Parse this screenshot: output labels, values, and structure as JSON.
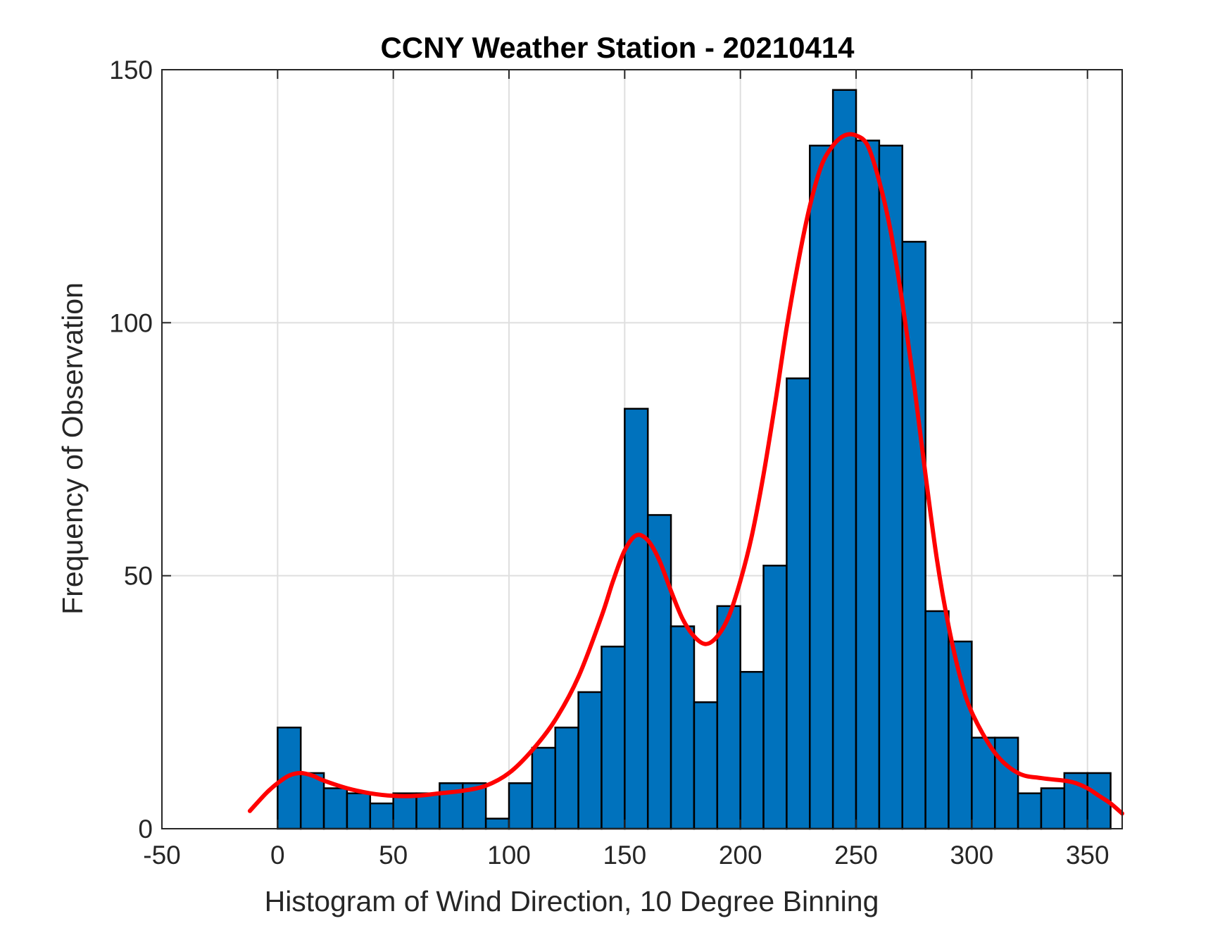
{
  "chart_data": {
    "type": "bar",
    "title": "CCNY Weather Station - 20210414",
    "xlabel": "Histogram of Wind Direction, 10 Degree Binning",
    "ylabel": "Frequency of Observation",
    "xlim": [
      -50,
      365
    ],
    "ylim": [
      0,
      150
    ],
    "xticks": [
      -50,
      0,
      50,
      100,
      150,
      200,
      250,
      300,
      350
    ],
    "yticks": [
      0,
      50,
      100,
      150
    ],
    "grid": true,
    "bin_width": 10,
    "bin_edges": [
      0,
      10,
      20,
      30,
      40,
      50,
      60,
      70,
      80,
      90,
      100,
      110,
      120,
      130,
      140,
      150,
      160,
      170,
      180,
      190,
      200,
      210,
      220,
      230,
      240,
      250,
      260,
      270,
      280,
      290,
      300,
      310,
      320,
      330,
      340,
      350,
      360
    ],
    "values": [
      20,
      11,
      8,
      7,
      5,
      7,
      7,
      9,
      9,
      2,
      9,
      16,
      20,
      27,
      36,
      83,
      62,
      40,
      25,
      44,
      31,
      52,
      89,
      135,
      146,
      136,
      135,
      116,
      43,
      37,
      18,
      18,
      7,
      8,
      11,
      11
    ],
    "bar_color": "#0072BD",
    "fit_curve": {
      "name": "density fit",
      "color": "#FF0000",
      "x": [
        -12,
        -5,
        0,
        5,
        10,
        15,
        20,
        30,
        40,
        50,
        60,
        70,
        80,
        90,
        100,
        110,
        120,
        130,
        140,
        145,
        150,
        155,
        160,
        165,
        170,
        175,
        180,
        185,
        190,
        195,
        200,
        205,
        210,
        215,
        220,
        225,
        230,
        235,
        240,
        245,
        250,
        255,
        260,
        265,
        270,
        275,
        280,
        285,
        290,
        295,
        300,
        310,
        320,
        330,
        340,
        345,
        350,
        355,
        360,
        365
      ],
      "y": [
        3.5,
        7,
        9,
        10.5,
        11,
        10.5,
        9.5,
        8,
        7,
        6.5,
        6.5,
        7,
        7.5,
        8.5,
        11,
        15.5,
        21.5,
        30,
        42,
        49,
        55,
        58,
        57,
        53,
        47,
        41.5,
        38,
        36.5,
        38,
        42,
        49,
        58,
        70,
        84,
        99,
        112,
        123,
        131,
        135,
        137,
        137,
        135,
        128,
        118,
        104,
        88,
        70,
        53,
        40,
        30,
        23,
        15,
        11,
        10,
        9.5,
        9,
        8,
        6.5,
        5,
        3
      ]
    }
  }
}
